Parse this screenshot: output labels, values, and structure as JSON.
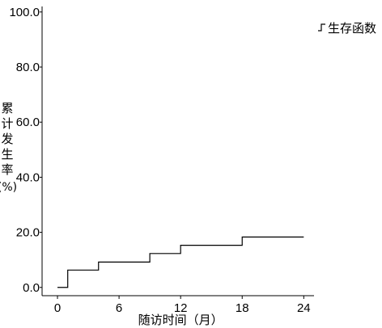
{
  "chart_data": {
    "type": "line",
    "step": true,
    "xlabel": "随访时间（月）",
    "ylabel": "累计发生率(%)",
    "xlim": [
      -1.5,
      25
    ],
    "ylim": [
      -3,
      102
    ],
    "x_ticks": [
      0,
      6,
      12,
      18,
      24
    ],
    "x_tick_labels": [
      "0",
      "6",
      "12",
      "18",
      "24"
    ],
    "y_ticks": [
      0,
      20,
      40,
      60,
      80,
      100
    ],
    "y_tick_labels": [
      "0.0",
      "20.0",
      "40.0",
      "60.0",
      "80.0",
      "100.0"
    ],
    "grid": false,
    "legend_position": "top-right",
    "series": [
      {
        "name": "生存函数",
        "color": "#000000",
        "x": [
          0,
          1,
          4,
          9,
          12,
          18,
          24
        ],
        "y": [
          0,
          6.3,
          9.2,
          12.3,
          15.3,
          18.3,
          18.3
        ]
      }
    ]
  }
}
